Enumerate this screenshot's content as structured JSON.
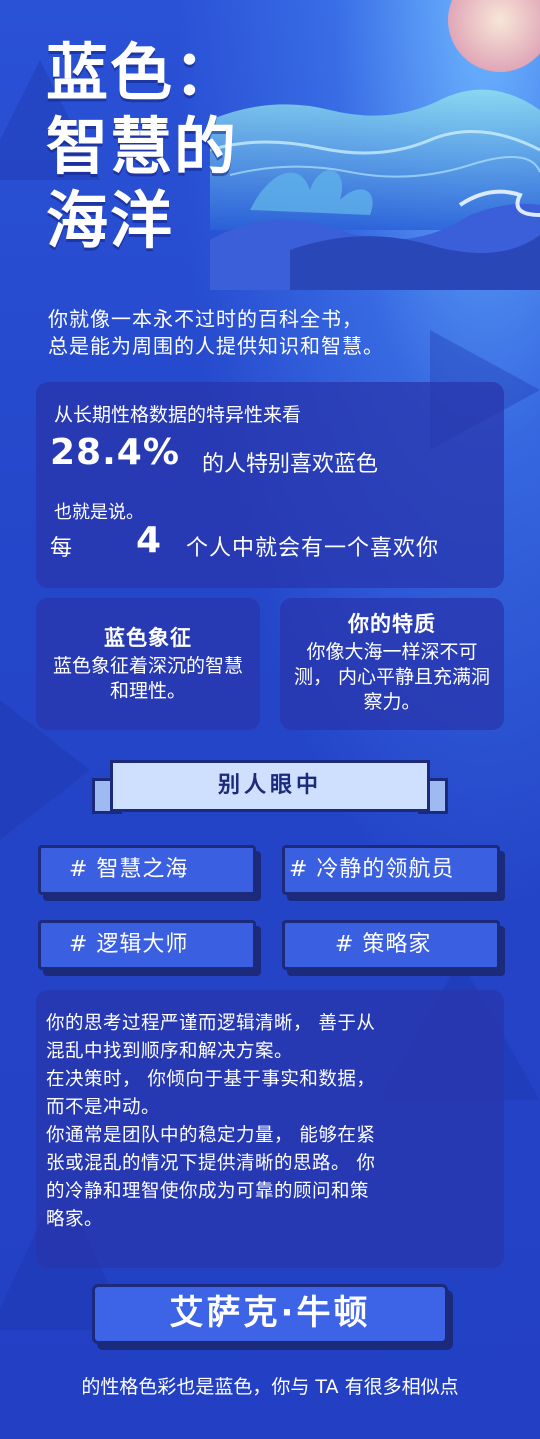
{
  "header": {
    "title_lines": [
      "蓝色：",
      "智慧的",
      "海洋"
    ],
    "intro_line1": "你就像一本永不过时的百科全书，",
    "intro_line2": "总是能为周围的人提供知识和智慧。"
  },
  "stats": {
    "line1": "从长期性格数据的特异性来看",
    "percent": "28.4%",
    "percent_suffix": "的人特别喜欢蓝色",
    "line3": "也就是说。",
    "each_prefix": "每",
    "each_number": "4",
    "each_suffix": "个人中就会有一个喜欢你"
  },
  "cards": {
    "symbol": {
      "title": "蓝色象征",
      "body": "蓝色象征着深沉的智慧和理性。"
    },
    "traits": {
      "title": "你的特质",
      "body": "你像大海一样深不可测， 内心平静且充满洞察力。"
    }
  },
  "ribbon": {
    "label": "别人眼中"
  },
  "tags": [
    "# 智慧之海",
    "# 冷静的领航员",
    "# 逻辑大师",
    "# 策略家"
  ],
  "description": {
    "line1": "你的思考过程严谨而逻辑清晰， 善于从",
    "line2": "混乱中找到顺序和解决方案。",
    "line3": "在决策时， 你倾向于基于事实和数据，",
    "line4": "而不是冲动。",
    "line5": "你通常是团队中的稳定力量， 能够在紧",
    "line6": "张或混乱的情况下提供清晰的思路。 你",
    "line7": "的冷静和理智使你成为可靠的顾问和策",
    "line8": "略家。"
  },
  "person": {
    "name": "艾萨克·牛顿",
    "closing": "的性格色彩也是蓝色，你与 TA 有很多相似点"
  },
  "colors": {
    "background": "#2346c9",
    "card": "#2834aa",
    "outline": "#1b2a7a",
    "ribbon": "#cfe0ff"
  }
}
